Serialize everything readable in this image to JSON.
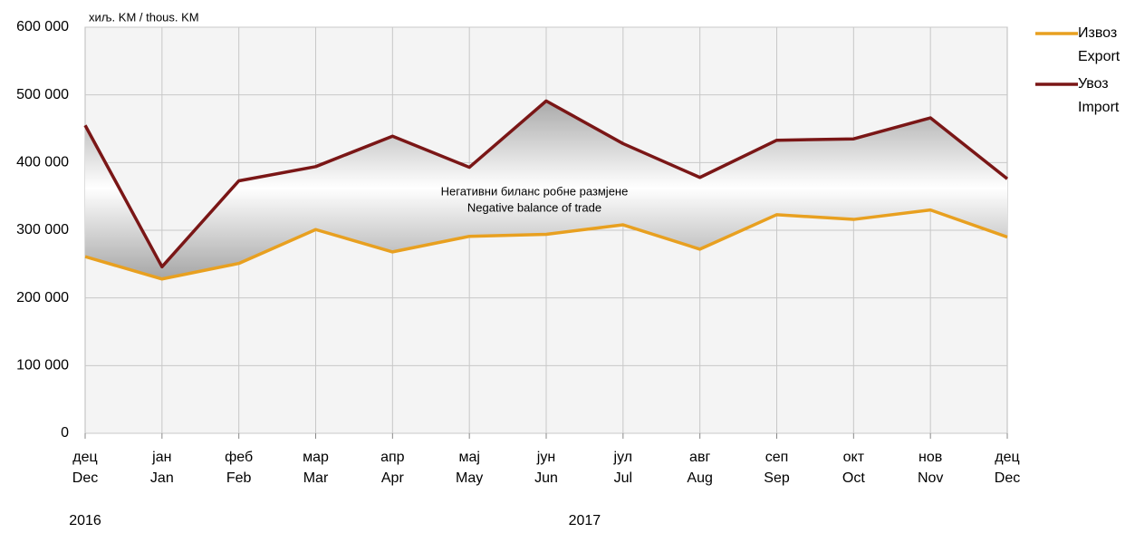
{
  "chart_data": {
    "type": "line",
    "unit_label": "хиљ. KM / thous. KM",
    "annotation": [
      "Негативни биланс робне размјене",
      "Negative balance of trade"
    ],
    "categories": [
      [
        "дец",
        "Dec"
      ],
      [
        "јан",
        "Jan"
      ],
      [
        "феб",
        "Feb"
      ],
      [
        "мар",
        "Mar"
      ],
      [
        "апр",
        "Apr"
      ],
      [
        "мај",
        "May"
      ],
      [
        "јун",
        "Jun"
      ],
      [
        "јул",
        "Jul"
      ],
      [
        "авг",
        "Aug"
      ],
      [
        "сеп",
        "Sep"
      ],
      [
        "окт",
        "Oct"
      ],
      [
        "нов",
        "Nov"
      ],
      [
        "дец",
        "Dec"
      ]
    ],
    "years": [
      "2016",
      "2017"
    ],
    "series": [
      {
        "name": [
          "Извоз",
          "Export"
        ],
        "color": "#e8a020",
        "values": [
          261000,
          228000,
          251000,
          301000,
          268000,
          291000,
          294000,
          308000,
          272000,
          323000,
          316000,
          330000,
          290000
        ]
      },
      {
        "name": [
          "Увоз",
          "Import"
        ],
        "color": "#7a1616",
        "values": [
          455000,
          246000,
          373000,
          394000,
          439000,
          393000,
          491000,
          428000,
          378000,
          433000,
          435000,
          466000,
          376000
        ]
      }
    ],
    "ylim": [
      0,
      600000
    ],
    "yticks": [
      0,
      {
        "value": 100000,
        "label": "100 000"
      },
      {
        "value": 200000,
        "label": "200 000"
      },
      {
        "value": 300000,
        "label": "300 000"
      },
      {
        "value": 400000,
        "label": "400 000"
      },
      {
        "value": 500000,
        "label": "500 000"
      },
      {
        "value": 600000,
        "label": "600 000"
      }
    ],
    "grid": true,
    "legend": "right"
  }
}
